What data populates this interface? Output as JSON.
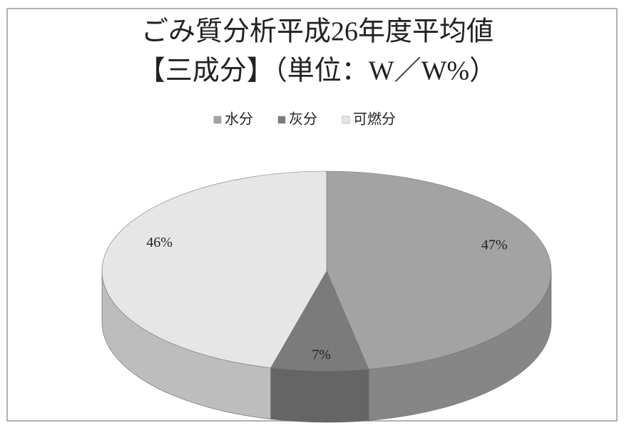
{
  "chart_data": {
    "type": "pie",
    "title": "ごみ質分析平成26年度平均値",
    "subtitle": "【三成分】（単位：W／W%）",
    "categories": [
      "水分",
      "灰分",
      "可燃分"
    ],
    "values": [
      47,
      7,
      46
    ],
    "value_labels": [
      "47%",
      "7%",
      "46%"
    ],
    "colors": [
      "#a3a3a3",
      "#7b7b7b",
      "#e6e6e6"
    ],
    "legend": "top"
  }
}
